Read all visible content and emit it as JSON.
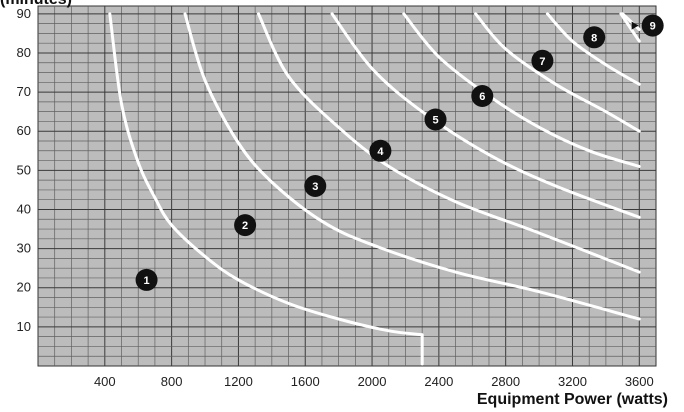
{
  "chart_data": {
    "type": "line",
    "title": "",
    "xlabel": "Equipment Power (watts)",
    "ylabel": "(minutes)",
    "xlim": [
      0,
      3700
    ],
    "ylim": [
      0,
      92
    ],
    "x_ticks": [
      400,
      800,
      1200,
      1600,
      2000,
      2400,
      2800,
      3200,
      3600
    ],
    "y_ticks": [
      10,
      20,
      30,
      40,
      50,
      60,
      70,
      80,
      90
    ],
    "grid": true,
    "background_color": "#bcbcbc",
    "curve_color": "#ffffff",
    "marker_color": "#111111",
    "series": [
      {
        "label": "1",
        "points": [
          [
            430,
            90
          ],
          [
            500,
            67
          ],
          [
            600,
            52
          ],
          [
            700,
            43
          ],
          [
            800,
            36
          ],
          [
            1000,
            28
          ],
          [
            1200,
            22
          ],
          [
            1500,
            16
          ],
          [
            1800,
            12
          ],
          [
            2100,
            9
          ],
          [
            2300,
            8
          ],
          [
            2300,
            7
          ]
        ],
        "marker": [
          650,
          22
        ]
      },
      {
        "label": "2",
        "points": [
          [
            880,
            90
          ],
          [
            1000,
            73
          ],
          [
            1200,
            57
          ],
          [
            1400,
            47
          ],
          [
            1700,
            37
          ],
          [
            2000,
            31
          ],
          [
            2500,
            24
          ],
          [
            3000,
            19
          ],
          [
            3600,
            12
          ]
        ],
        "marker": [
          1240,
          36
        ]
      },
      {
        "label": "3",
        "points": [
          [
            1320,
            90
          ],
          [
            1500,
            74
          ],
          [
            1800,
            61
          ],
          [
            2100,
            51
          ],
          [
            2500,
            42
          ],
          [
            3000,
            34
          ],
          [
            3600,
            24
          ]
        ],
        "marker": [
          1660,
          46
        ]
      },
      {
        "label": "4",
        "points": [
          [
            1760,
            90
          ],
          [
            2000,
            76
          ],
          [
            2300,
            65
          ],
          [
            2700,
            54
          ],
          [
            3100,
            46
          ],
          [
            3600,
            38
          ]
        ],
        "marker": [
          2050,
          55
        ]
      },
      {
        "label": "5",
        "points": [
          [
            2190,
            90
          ],
          [
            2400,
            79
          ],
          [
            2700,
            69
          ],
          [
            3000,
            61
          ],
          [
            3300,
            55
          ],
          [
            3600,
            51
          ]
        ],
        "marker": [
          2380,
          63
        ]
      },
      {
        "label": "6",
        "points": [
          [
            2620,
            90
          ],
          [
            2800,
            81
          ],
          [
            3100,
            72
          ],
          [
            3400,
            65
          ],
          [
            3600,
            60
          ]
        ],
        "marker": [
          2660,
          69
        ]
      },
      {
        "label": "7",
        "points": [
          [
            3050,
            90
          ],
          [
            3200,
            83
          ],
          [
            3400,
            77
          ],
          [
            3600,
            72
          ]
        ],
        "marker": [
          3020,
          78
        ]
      },
      {
        "label": "8",
        "points": [
          [
            3490,
            90
          ],
          [
            3600,
            83
          ]
        ],
        "marker": [
          3330,
          84
        ]
      },
      {
        "label": "9",
        "points": [
          [
            3500,
            90
          ],
          [
            3600,
            86
          ]
        ],
        "marker": [
          3680,
          87
        ]
      }
    ]
  }
}
